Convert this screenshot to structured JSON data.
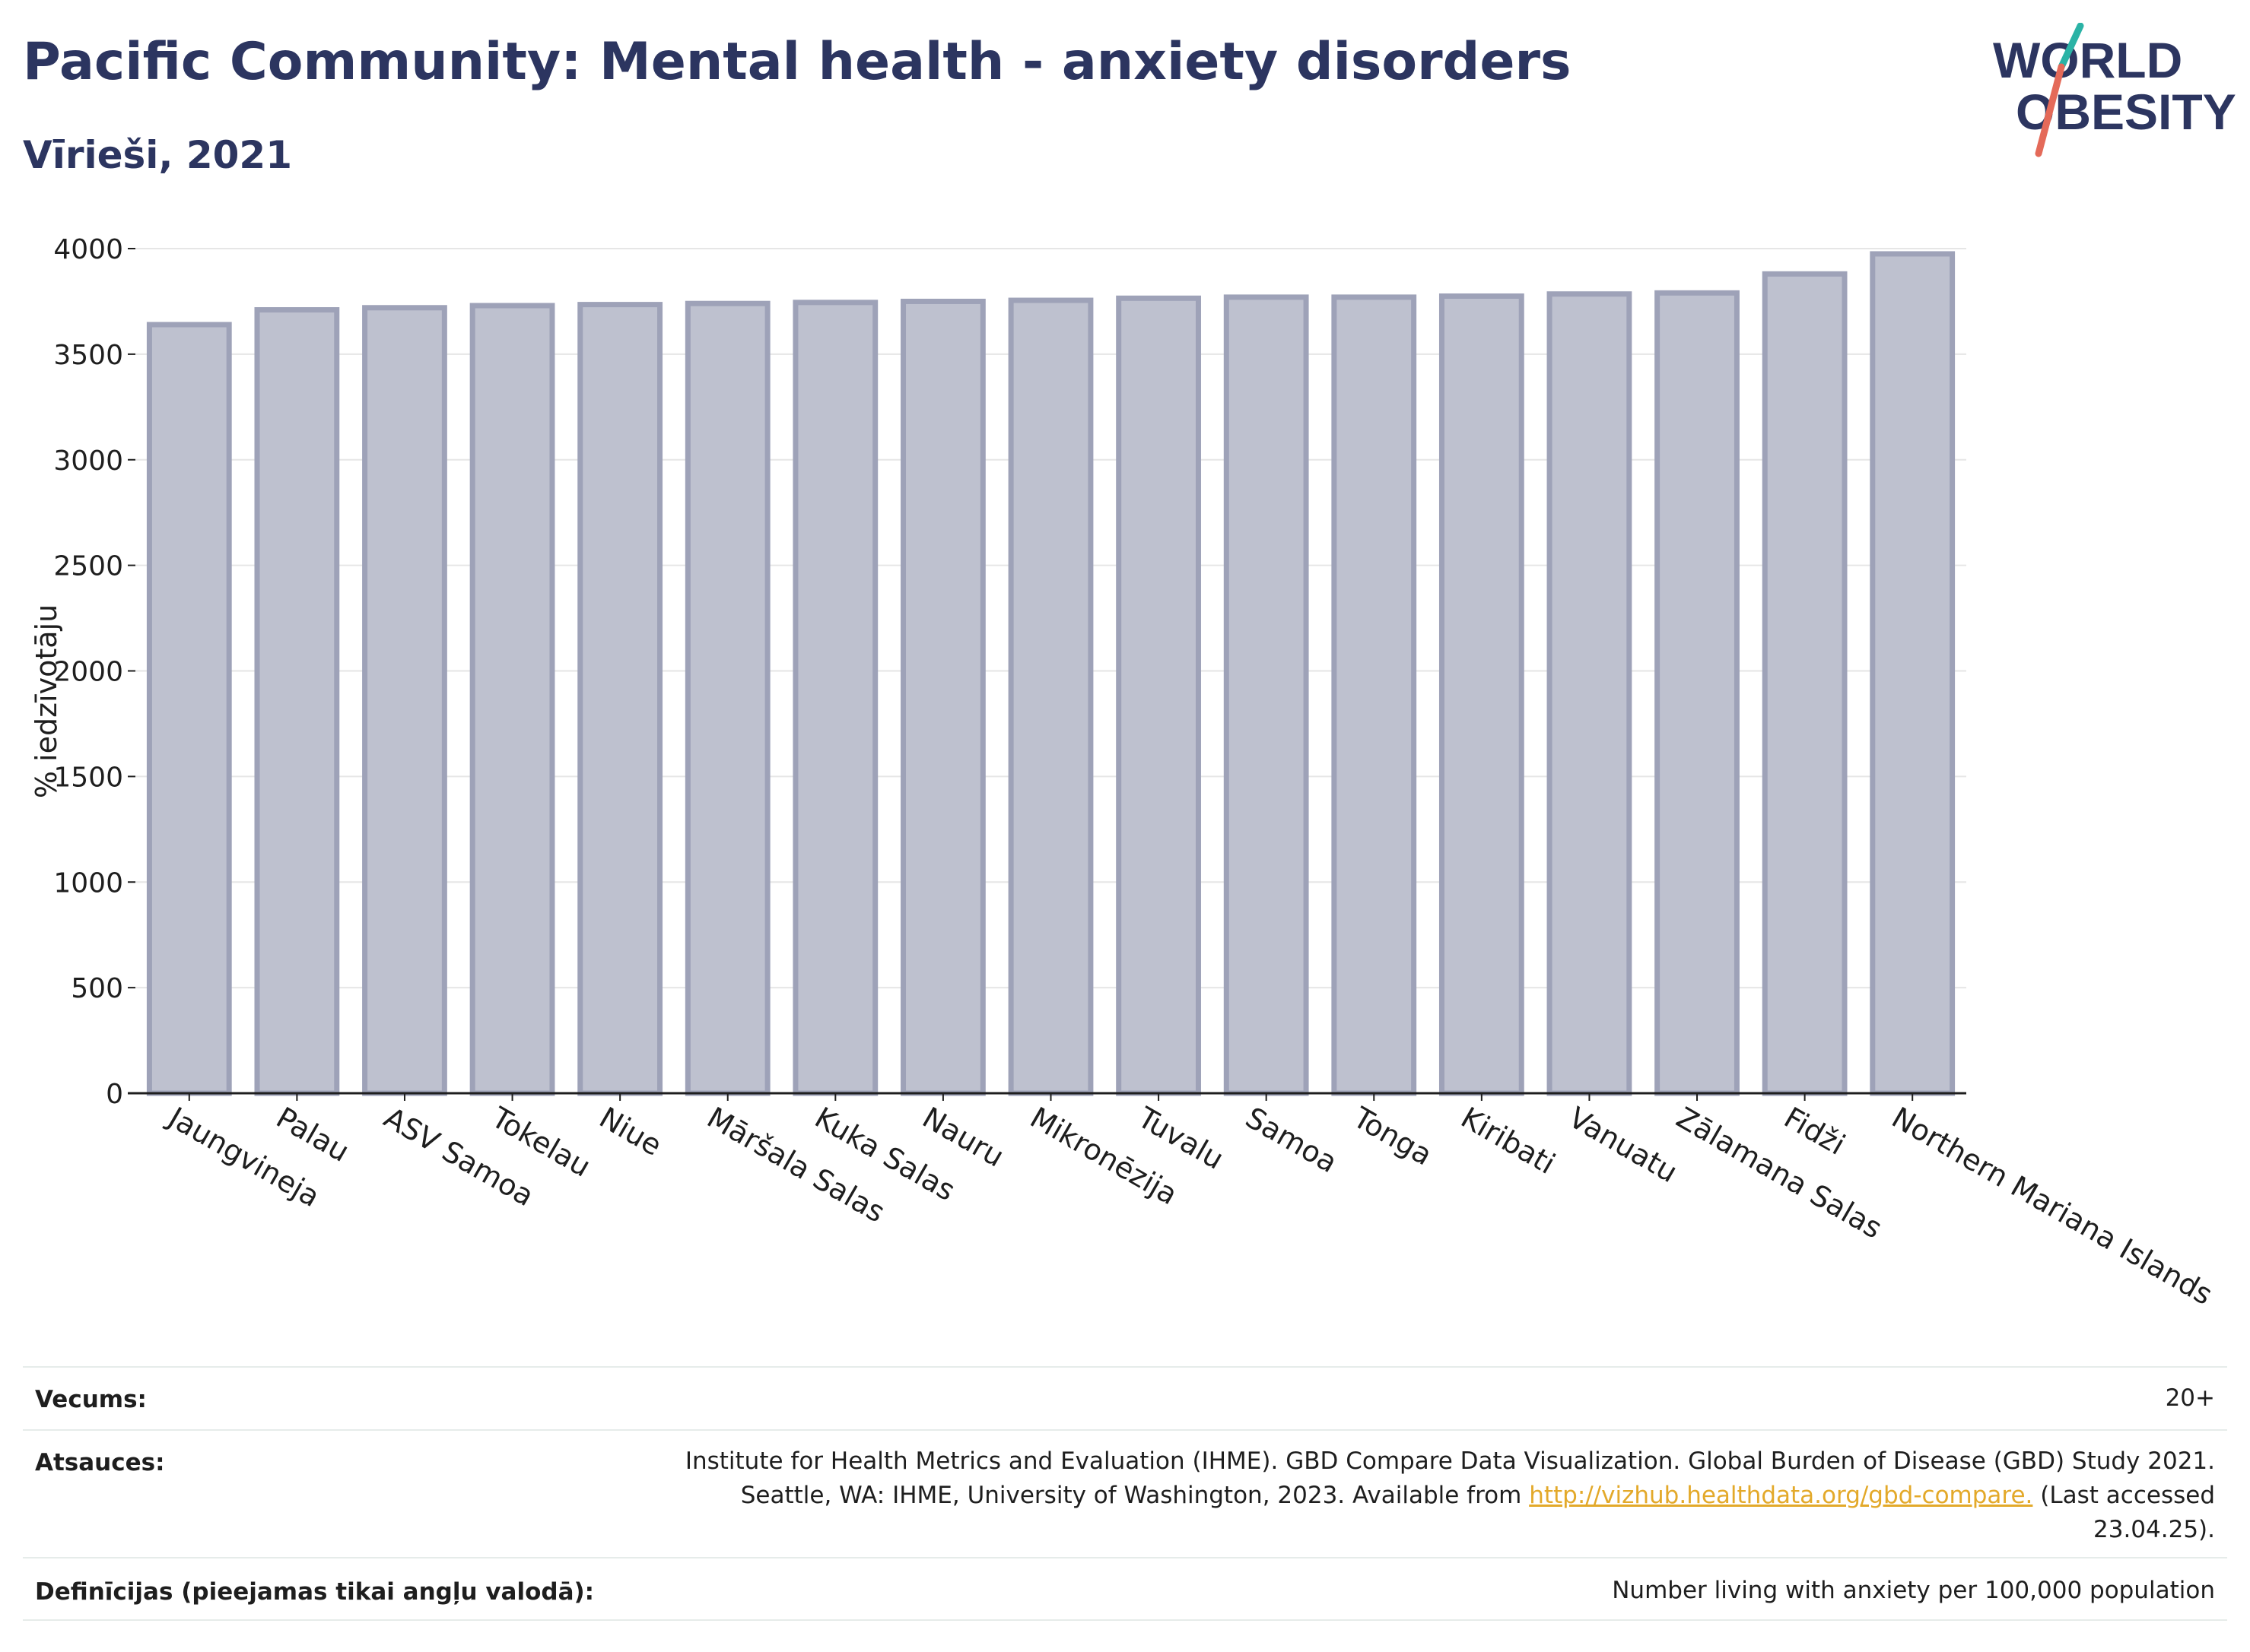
{
  "header": {
    "title": "Pacific Community: Mental health - anxiety disorders",
    "subtitle": "Vīrieši, 2021",
    "logo_line1": "WORLD",
    "logo_line2": "OBESITY"
  },
  "chart_data": {
    "type": "bar",
    "categories": [
      "Jaungvineja",
      "Palau",
      "ASV Samoa",
      "Tokelau",
      "Niue",
      "Māršala Salas",
      "Kuka Salas",
      "Nauru",
      "Mikronēzija",
      "Tuvalu",
      "Samoa",
      "Tonga",
      "Kiribati",
      "Vanuatu",
      "Zālamana Salas",
      "Fidži",
      "Northern Mariana Islands"
    ],
    "values": [
      3640,
      3710,
      3720,
      3730,
      3735,
      3740,
      3745,
      3750,
      3755,
      3765,
      3770,
      3770,
      3775,
      3785,
      3790,
      3880,
      3975
    ],
    "ylabel": "% iedzīvotāju",
    "xlabel": "",
    "ylim": [
      0,
      4000
    ],
    "yticks": [
      0,
      500,
      1000,
      1500,
      2000,
      2500,
      3000,
      3500,
      4000
    ],
    "grid": true,
    "bar_color": "#bec1cf",
    "bar_edge_color": "#9ea2b8"
  },
  "info": {
    "age_label": "Vecums:",
    "age_value": "20+",
    "sources_label": "Atsauces:",
    "sources_line1": "Institute for Health Metrics and Evaluation (IHME). GBD Compare Data Visualization. Global Burden of Disease (GBD) Study 2021.",
    "sources_line2_pre": "Seattle, WA: IHME, University of Washington, 2023. Available from ",
    "sources_link": "http://vizhub.healthdata.org/gbd-compare.",
    "sources_line2_post": " (Last accessed",
    "sources_line3": "23.04.25).",
    "definitions_label": "Definīcijas (pieejamas tikai angļu valodā):",
    "definitions_value": "Number living with anxiety per 100,000 population"
  },
  "colors": {
    "title": "#2c3560",
    "logo_teal": "#2bb3a6",
    "logo_coral": "#e46a59",
    "link": "#e3a92a"
  }
}
